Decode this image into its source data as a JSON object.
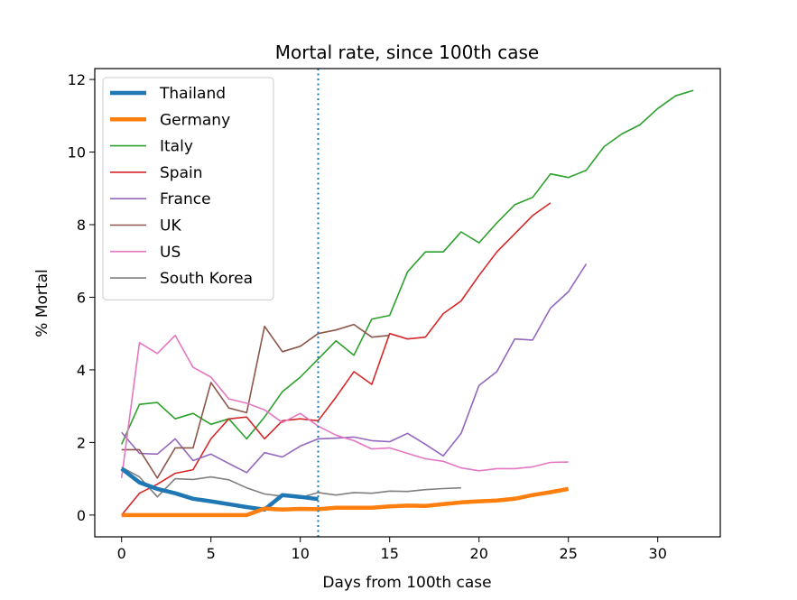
{
  "chart_data": {
    "type": "line",
    "title": "Mortal rate, since 100th case",
    "xlabel": "Days from 100th case",
    "ylabel": "% Mortal",
    "xlim": [
      -1.5,
      33.5
    ],
    "ylim": [
      -0.6,
      12.3
    ],
    "xticks": [
      0,
      5,
      10,
      15,
      20,
      25,
      30
    ],
    "yticks": [
      0,
      2,
      4,
      6,
      8,
      10,
      12
    ],
    "grid": false,
    "legend_position": "top-left",
    "vline": {
      "x": 11,
      "color": "#1f77b4",
      "style": "dotted"
    },
    "series": [
      {
        "name": "Thailand",
        "color": "#1f77b4",
        "width": 4.5,
        "x": [
          0,
          1,
          2,
          3,
          4,
          5,
          6,
          7,
          8,
          9,
          10,
          11
        ],
        "y": [
          1.28,
          0.9,
          0.72,
          0.6,
          0.45,
          0.38,
          0.3,
          0.22,
          0.15,
          0.55,
          0.5,
          0.44
        ]
      },
      {
        "name": "Germany",
        "color": "#ff7f0e",
        "width": 4.5,
        "x": [
          0,
          1,
          2,
          3,
          4,
          5,
          6,
          7,
          8,
          9,
          10,
          11,
          12,
          13,
          14,
          15,
          16,
          17,
          18,
          19,
          20,
          21,
          22,
          23,
          24,
          25
        ],
        "y": [
          0,
          0,
          0,
          0,
          0,
          0,
          0,
          0,
          0.18,
          0.15,
          0.17,
          0.16,
          0.2,
          0.2,
          0.2,
          0.24,
          0.26,
          0.25,
          0.3,
          0.35,
          0.38,
          0.4,
          0.45,
          0.55,
          0.63,
          0.72
        ]
      },
      {
        "name": "Italy",
        "color": "#2ca02c",
        "width": 1.6,
        "x": [
          0,
          1,
          2,
          3,
          4,
          5,
          6,
          7,
          8,
          9,
          10,
          11,
          12,
          13,
          14,
          15,
          16,
          17,
          18,
          19,
          20,
          21,
          22,
          23,
          24,
          25,
          26,
          27,
          28,
          29,
          30,
          31,
          32
        ],
        "y": [
          1.95,
          3.05,
          3.1,
          2.65,
          2.8,
          2.5,
          2.65,
          2.1,
          2.7,
          3.4,
          3.8,
          4.3,
          4.8,
          4.4,
          5.4,
          5.5,
          6.7,
          7.25,
          7.25,
          7.8,
          7.5,
          8.05,
          8.55,
          8.75,
          9.4,
          9.3,
          9.5,
          10.15,
          10.5,
          10.75,
          11.2,
          11.55,
          11.7
        ]
      },
      {
        "name": "Spain",
        "color": "#d62728",
        "width": 1.6,
        "x": [
          0,
          1,
          2,
          3,
          4,
          5,
          6,
          7,
          8,
          9,
          10,
          11,
          12,
          13,
          14,
          15,
          16,
          17,
          18,
          19,
          20,
          21,
          22,
          23,
          24
        ],
        "y": [
          0,
          0.6,
          0.85,
          1.15,
          1.25,
          2.1,
          2.65,
          2.7,
          2.1,
          2.6,
          2.65,
          2.6,
          3.25,
          3.95,
          3.6,
          5.0,
          4.85,
          4.9,
          5.55,
          5.9,
          6.6,
          7.25,
          7.75,
          8.25,
          8.6
        ]
      },
      {
        "name": "France",
        "color": "#9467bd",
        "width": 1.6,
        "x": [
          0,
          1,
          2,
          3,
          4,
          5,
          6,
          7,
          8,
          9,
          10,
          11,
          12,
          13,
          14,
          15,
          16,
          17,
          18,
          19,
          20,
          21,
          22,
          23,
          24,
          25,
          26
        ],
        "y": [
          2.28,
          1.7,
          1.68,
          2.1,
          1.5,
          1.68,
          1.42,
          1.17,
          1.72,
          1.6,
          1.9,
          2.1,
          2.12,
          2.15,
          2.05,
          2.02,
          2.25,
          1.95,
          1.63,
          2.25,
          3.57,
          3.95,
          4.85,
          4.82,
          5.7,
          6.15,
          6.92
        ]
      },
      {
        "name": "UK",
        "color": "#8c564b",
        "width": 1.6,
        "x": [
          0,
          1,
          2,
          3,
          4,
          5,
          6,
          7,
          8,
          9,
          10,
          11,
          12,
          13,
          14,
          15
        ],
        "y": [
          1.8,
          1.8,
          1.02,
          1.85,
          1.85,
          3.65,
          2.95,
          2.82,
          5.2,
          4.5,
          4.65,
          5.0,
          5.1,
          5.25,
          4.9,
          4.95
        ]
      },
      {
        "name": "US",
        "color": "#e377c2",
        "width": 1.6,
        "x": [
          0,
          1,
          2,
          3,
          4,
          5,
          6,
          7,
          8,
          9,
          10,
          11,
          12,
          13,
          14,
          15,
          16,
          17,
          18,
          19,
          20,
          21,
          22,
          23,
          24,
          25
        ],
        "y": [
          1.02,
          4.75,
          4.45,
          4.95,
          4.07,
          3.8,
          3.2,
          3.08,
          2.9,
          2.55,
          2.8,
          2.45,
          2.2,
          2.05,
          1.82,
          1.85,
          1.7,
          1.55,
          1.48,
          1.3,
          1.22,
          1.28,
          1.28,
          1.33,
          1.45,
          1.46
        ]
      },
      {
        "name": "South Korea",
        "color": "#7f7f7f",
        "width": 1.6,
        "x": [
          0,
          1,
          2,
          3,
          4,
          5,
          6,
          7,
          8,
          9,
          10,
          11,
          12,
          13,
          14,
          15,
          16,
          17,
          18,
          19
        ],
        "y": [
          1.32,
          1.05,
          0.5,
          1.0,
          0.98,
          1.05,
          0.97,
          0.75,
          0.58,
          0.52,
          0.48,
          0.62,
          0.55,
          0.62,
          0.6,
          0.66,
          0.65,
          0.7,
          0.73,
          0.75
        ]
      }
    ]
  }
}
